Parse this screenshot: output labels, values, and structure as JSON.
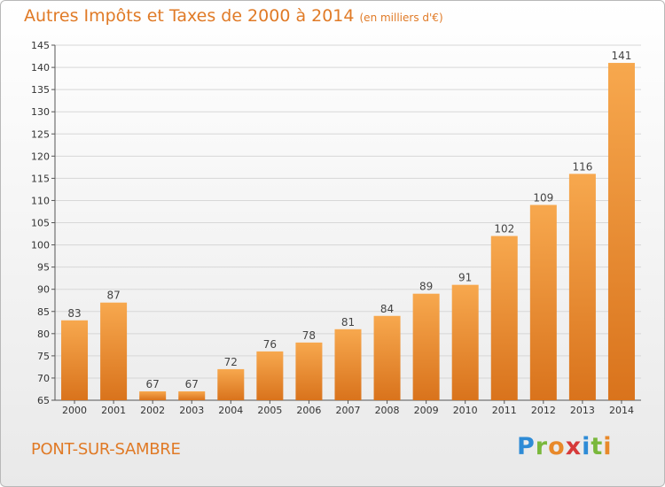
{
  "header": {
    "title": "Autres Impôts et Taxes de 2000 à 2014",
    "unit": "(en milliers d'€)"
  },
  "footer": {
    "commune": "PONT-SUR-SAMBRE",
    "logo": "Proxiti"
  },
  "colors": {
    "accent": "#e07a26",
    "bar_light": "#f7a84e",
    "bar_dark": "#d9731c",
    "grid": "#d7d7d7",
    "logo_letters": [
      "#2e8bd6",
      "#7ab83c",
      "#e8892a",
      "#d63a3a",
      "#2e8bd6",
      "#7ab83c",
      "#e8892a"
    ]
  },
  "chart_data": {
    "type": "bar",
    "categories": [
      "2000",
      "2001",
      "2002",
      "2003",
      "2004",
      "2005",
      "2006",
      "2007",
      "2008",
      "2009",
      "2010",
      "2011",
      "2012",
      "2013",
      "2014"
    ],
    "values": [
      83,
      87,
      67,
      67,
      72,
      76,
      78,
      81,
      84,
      89,
      91,
      102,
      109,
      116,
      141
    ],
    "title": "Autres Impôts et Taxes de 2000 à 2014",
    "subtitle": "(en milliers d'€)",
    "ylim": [
      65,
      145
    ],
    "yticks": [
      65,
      70,
      75,
      80,
      85,
      90,
      95,
      100,
      105,
      110,
      115,
      120,
      125,
      130,
      135,
      140,
      145
    ],
    "grid": true,
    "data_labels": true
  }
}
